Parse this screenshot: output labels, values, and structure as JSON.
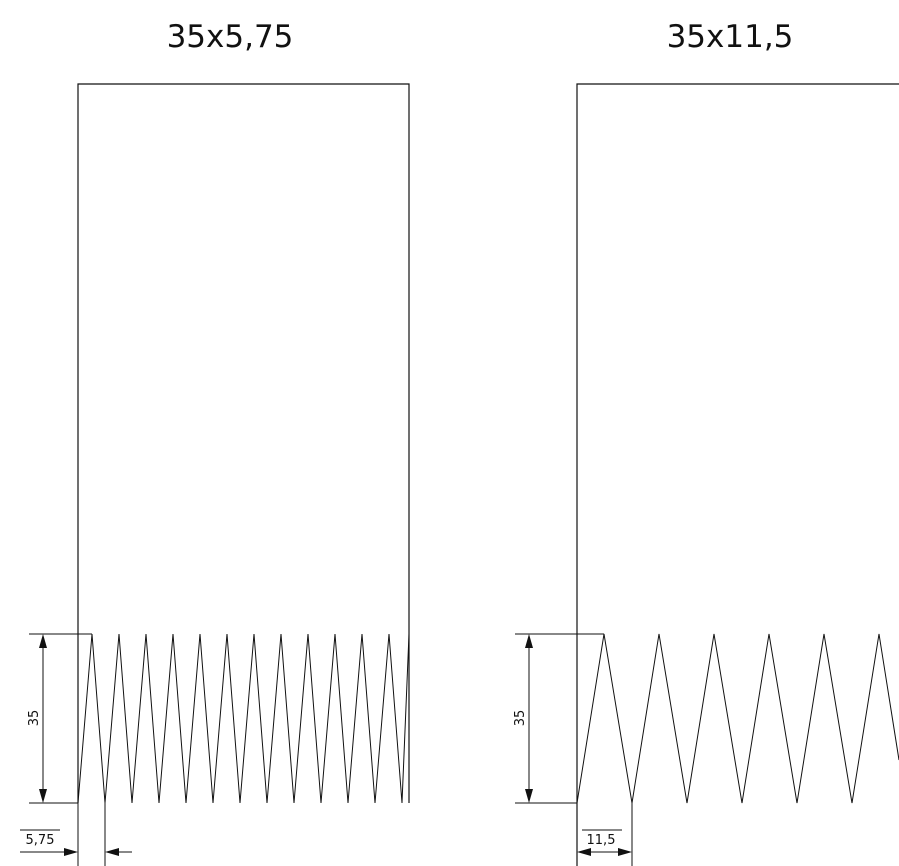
{
  "diagrams": [
    {
      "title": "35x5,75",
      "height_label": "35",
      "pitch_label": "5,75"
    },
    {
      "title": "35x11,5",
      "height_label": "35",
      "pitch_label": "11,5"
    }
  ]
}
